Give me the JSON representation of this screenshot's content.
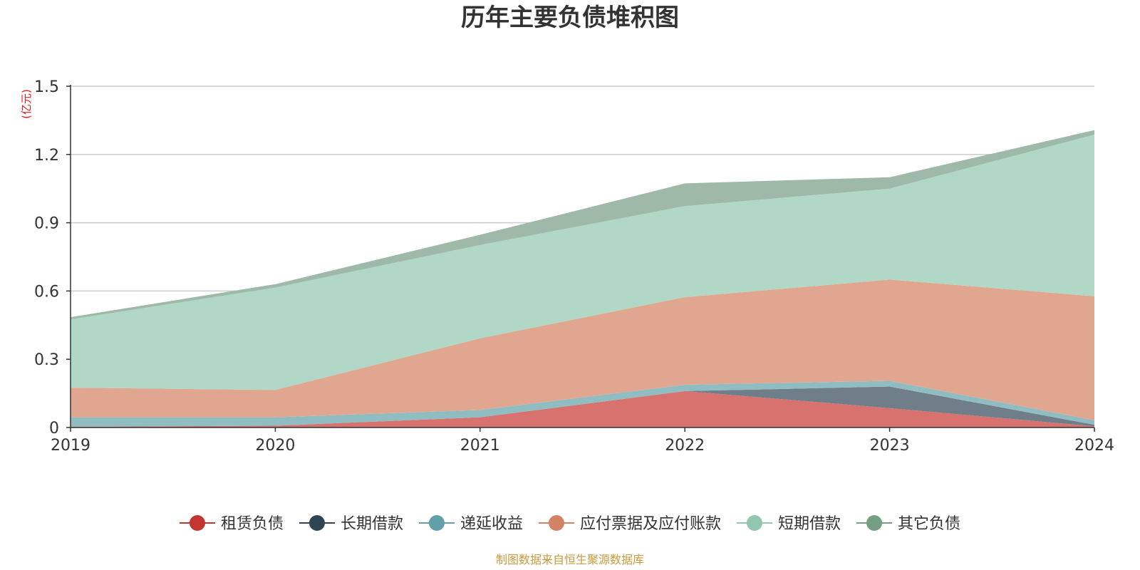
{
  "chart_data": {
    "type": "area",
    "stacked": true,
    "title": "历年主要负债堆积图",
    "ylabel": "(亿元)",
    "xlabel": "",
    "categories": [
      "2019",
      "2020",
      "2021",
      "2022",
      "2023",
      "2024"
    ],
    "ylim": [
      0,
      1.5
    ],
    "yticks": [
      0,
      0.3,
      0.6,
      0.9,
      1.2,
      1.5
    ],
    "ytick_labels": [
      "0",
      "0.3",
      "0.6",
      "0.9",
      "1.2",
      "1.5"
    ],
    "grid": true,
    "legend_position": "bottom",
    "series": [
      {
        "name": "租赁负债",
        "color": "#c23531",
        "fill": "#d7726f",
        "values": [
          0.003,
          0.008,
          0.045,
          0.16,
          0.085,
          0.005
        ]
      },
      {
        "name": "长期借款",
        "color": "#2f4554",
        "fill": "#6f7e88",
        "values": [
          0.0,
          0.0,
          0.0,
          0.0,
          0.095,
          0.007
        ]
      },
      {
        "name": "递延收益",
        "color": "#61a0a8",
        "fill": "#8fbdc2",
        "values": [
          0.042,
          0.037,
          0.032,
          0.028,
          0.025,
          0.02
        ]
      },
      {
        "name": "应付票据及应付账款",
        "color": "#d48265",
        "fill": "#e1a690",
        "values": [
          0.13,
          0.12,
          0.315,
          0.385,
          0.445,
          0.545
        ]
      },
      {
        "name": "短期借款",
        "color": "#91c7ae",
        "fill": "#b1d8c6",
        "values": [
          0.3,
          0.45,
          0.41,
          0.4,
          0.4,
          0.71
        ]
      },
      {
        "name": "其它负债",
        "color": "#749f83",
        "fill": "#9eb9a7",
        "values": [
          0.01,
          0.015,
          0.045,
          0.1,
          0.05,
          0.02
        ]
      }
    ],
    "source_note": "制图数据来自恒生聚源数据库"
  }
}
